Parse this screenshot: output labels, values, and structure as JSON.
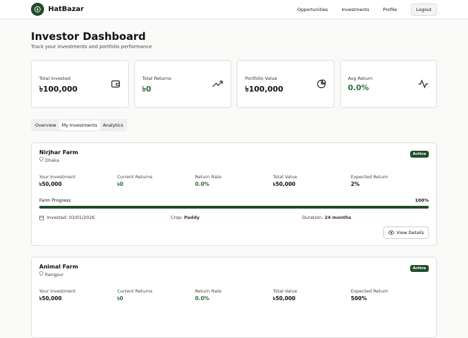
{
  "nav": {
    "brand": "HatBazar",
    "links": [
      "Opportunities",
      "Investments",
      "Profile"
    ],
    "logout": "Logout"
  },
  "header": {
    "title": "Investor Dashboard",
    "subtitle": "Track your investments and portfolio performance"
  },
  "stats": [
    {
      "label": "Total Invested",
      "value": "৳100,000"
    },
    {
      "label": "Total Returns",
      "value": "৳0"
    },
    {
      "label": "Portfolio Value",
      "value": "৳100,000"
    },
    {
      "label": "Avg Return",
      "value": "0.0%"
    }
  ],
  "tabs": [
    "Overview",
    "My Investments",
    "Analytics"
  ],
  "investments": [
    {
      "name": "Nirjhar Farm",
      "location": "Dhaka",
      "status": "Active",
      "fields": [
        {
          "label": "Your Investment",
          "value": "৳50,000"
        },
        {
          "label": "Current Returns",
          "value": "৳0"
        },
        {
          "label": "Return Rate",
          "value": "0.0%"
        },
        {
          "label": "Total Value",
          "value": "৳50,000"
        },
        {
          "label": "Expected Return",
          "value": "2%"
        }
      ],
      "progress_title": "Farm Progress",
      "progress": {
        "value": 100,
        "label": "100%"
      },
      "invested": "Invested: 03/01/2026",
      "crop_label": "Crop:",
      "crop": "Paddy",
      "duration_label": "Duration:",
      "duration": "24 months",
      "button": "View Details"
    },
    {
      "name": "Animal Farm",
      "location": "Rangpur",
      "status": "Active",
      "fields": [
        {
          "label": "Your Investment",
          "value": "৳50,000"
        },
        {
          "label": "Current Returns",
          "value": "৳0"
        },
        {
          "label": "Return Rate",
          "value": "0.0%"
        },
        {
          "label": "Total Value",
          "value": "৳50,000"
        },
        {
          "label": "Expected Return",
          "value": "500%"
        }
      ]
    }
  ]
}
